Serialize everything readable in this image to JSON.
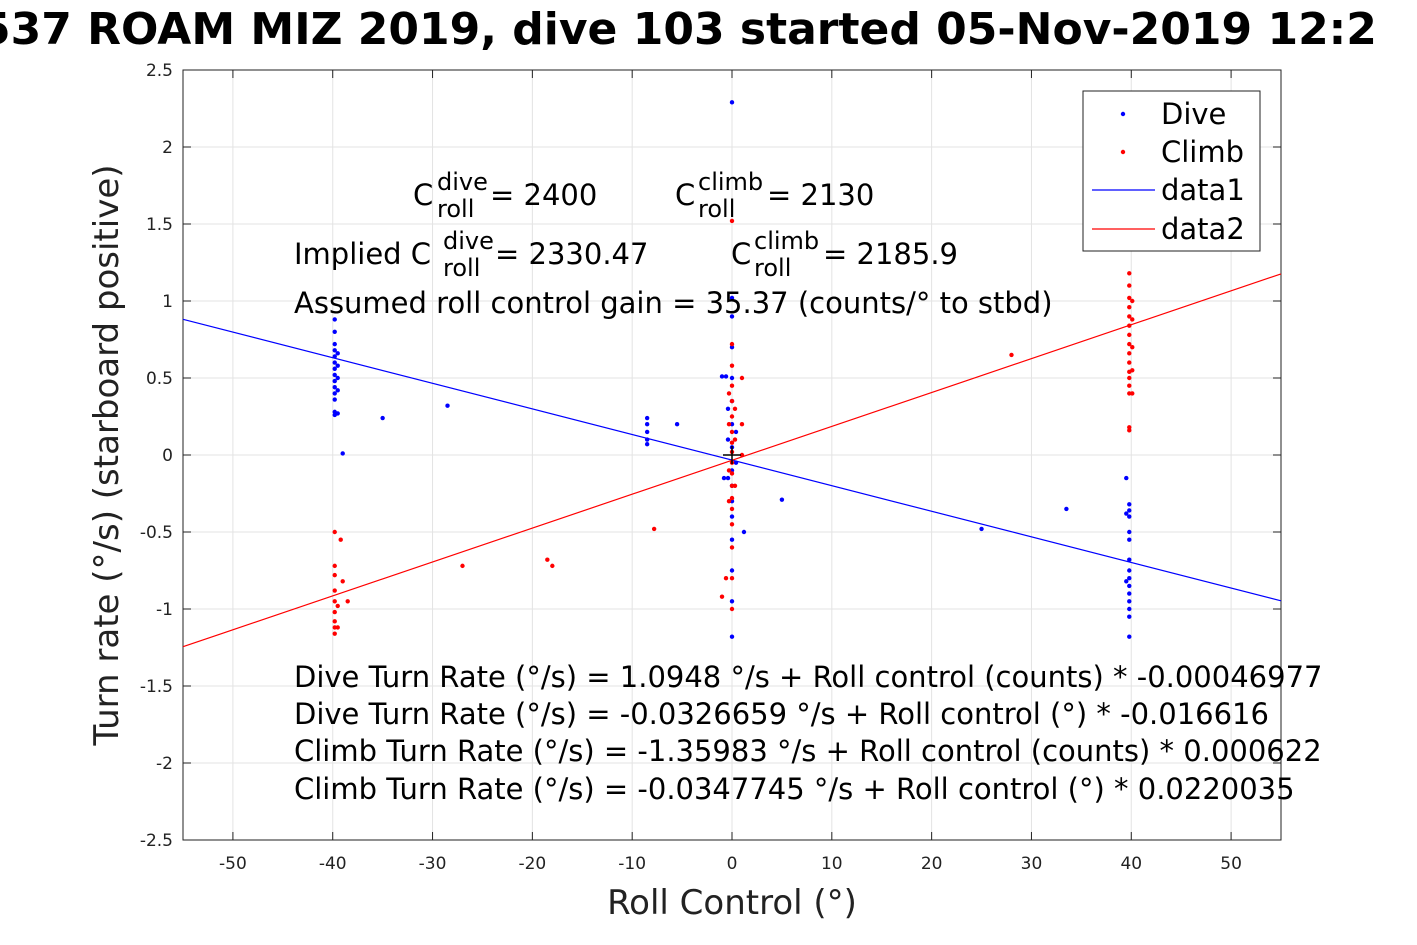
{
  "title": "537 ROAM MIZ 2019, dive 103 started 05-Nov-2019 12:2",
  "chart_data": {
    "type": "scatter",
    "xlabel": "Roll Control (°)",
    "ylabel": "Turn rate (°/s) (starboard positive)",
    "xlim": [
      -55,
      55
    ],
    "ylim": [
      -2.5,
      2.5
    ],
    "grid": true,
    "legend_position": "top-right",
    "x_ticks": [
      "-50",
      "-40",
      "-30",
      "-20",
      "-10",
      "0",
      "10",
      "20",
      "30",
      "40",
      "50"
    ],
    "y_ticks": [
      "-2.5",
      "-2",
      "-1.5",
      "-1",
      "-0.5",
      "0",
      "0.5",
      "1",
      "1.5",
      "2",
      "2.5"
    ],
    "legend": [
      {
        "label": "Dive",
        "kind": "marker",
        "color": "#0000ff"
      },
      {
        "label": "Climb",
        "kind": "marker",
        "color": "#ff0000"
      },
      {
        "label": "data1",
        "kind": "line",
        "color": "#0000ff"
      },
      {
        "label": "data2",
        "kind": "line",
        "color": "#ff0000"
      }
    ],
    "annotations": {
      "c_dive_base": "C",
      "c_dive_sup": "dive",
      "c_dive_sub": "roll",
      "c_dive_value": " = 2400",
      "c_climb_base": "C",
      "c_climb_sup": "climb",
      "c_climb_sub": "roll",
      "c_climb_value": " = 2130",
      "implied_prefix": "Implied C",
      "implied_dive_sup": "dive",
      "implied_dive_sub": "roll",
      "implied_dive_value": " = 2330.47",
      "implied_climb_base": "C",
      "implied_climb_sup": "climb",
      "implied_climb_sub": "roll",
      "implied_climb_value": " = 2185.9",
      "gain": "Assumed roll control gain = 35.37 (counts/° to stbd)",
      "eq1": "Dive Turn Rate (°/s) = 1.0948 °/s + Roll control (counts) * -0.00046977",
      "eq2": "Dive Turn Rate (°/s) = -0.0326659 °/s + Roll control (°) * -0.016616",
      "eq3": "Climb Turn Rate (°/s) = -1.35983 °/s + Roll control (counts) * 0.000622",
      "eq4": "Climb Turn Rate (°/s) = -0.0347745 °/s + Roll control (°) * 0.0220035"
    },
    "series": [
      {
        "name": "Dive",
        "type": "scatter",
        "color": "#0000ff",
        "points": [
          [
            0,
            2.29
          ],
          [
            0,
            1.02
          ],
          [
            0,
            0.9
          ],
          [
            0,
            0.7
          ],
          [
            0,
            0.5
          ],
          [
            0,
            0.35
          ],
          [
            0,
            0.2
          ],
          [
            0,
            0.05
          ],
          [
            0,
            -0.1
          ],
          [
            0,
            -0.2
          ],
          [
            0,
            -0.3
          ],
          [
            0,
            -0.4
          ],
          [
            0,
            -0.55
          ],
          [
            0,
            -0.75
          ],
          [
            0,
            -0.95
          ],
          [
            0,
            -1.18
          ],
          [
            -0.4,
            0.3
          ],
          [
            -0.4,
            0.1
          ],
          [
            -0.4,
            -0.15
          ],
          [
            0.4,
            0.15
          ],
          [
            0.4,
            -0.05
          ],
          [
            -1.0,
            0.51
          ],
          [
            -0.6,
            0.51
          ],
          [
            -0.8,
            -0.15
          ],
          [
            1.2,
            -0.5
          ],
          [
            -39.8,
            0.88
          ],
          [
            -39.8,
            0.8
          ],
          [
            -39.8,
            0.72
          ],
          [
            -39.8,
            0.68
          ],
          [
            -39.8,
            0.64
          ],
          [
            -39.8,
            0.6
          ],
          [
            -39.8,
            0.56
          ],
          [
            -39.8,
            0.52
          ],
          [
            -39.8,
            0.48
          ],
          [
            -39.8,
            0.44
          ],
          [
            -39.8,
            0.4
          ],
          [
            -39.8,
            0.36
          ],
          [
            -39.8,
            0.28
          ],
          [
            -39.8,
            0.26
          ],
          [
            -39.5,
            0.66
          ],
          [
            -39.5,
            0.58
          ],
          [
            -39.5,
            0.5
          ],
          [
            -39.5,
            0.42
          ],
          [
            -39.5,
            0.27
          ],
          [
            -39.0,
            0.01
          ],
          [
            -35,
            0.24
          ],
          [
            -28.5,
            0.32
          ],
          [
            -8.5,
            0.24
          ],
          [
            -8.5,
            0.2
          ],
          [
            -8.5,
            0.15
          ],
          [
            -8.5,
            0.1
          ],
          [
            -8.5,
            0.07
          ],
          [
            -5.5,
            0.2
          ],
          [
            5,
            -0.29
          ],
          [
            25,
            -0.48
          ],
          [
            33.5,
            -0.35
          ],
          [
            39.5,
            -0.15
          ],
          [
            39.8,
            -0.32
          ],
          [
            39.8,
            -0.36
          ],
          [
            39.8,
            -0.4
          ],
          [
            39.8,
            -0.5
          ],
          [
            39.8,
            -0.55
          ],
          [
            39.8,
            -0.68
          ],
          [
            39.8,
            -0.75
          ],
          [
            39.8,
            -0.8
          ],
          [
            39.8,
            -0.85
          ],
          [
            39.8,
            -0.9
          ],
          [
            39.8,
            -0.95
          ],
          [
            39.8,
            -1.0
          ],
          [
            39.8,
            -1.05
          ],
          [
            39.8,
            -1.18
          ],
          [
            39.5,
            -0.38
          ],
          [
            39.5,
            -0.82
          ]
        ]
      },
      {
        "name": "Climb",
        "type": "scatter",
        "color": "#ff0000",
        "points": [
          [
            0,
            1.52
          ],
          [
            0,
            0.72
          ],
          [
            0,
            0.58
          ],
          [
            0,
            0.45
          ],
          [
            0,
            0.35
          ],
          [
            0,
            0.25
          ],
          [
            0,
            0.15
          ],
          [
            0,
            0.08
          ],
          [
            0,
            0.02
          ],
          [
            0,
            -0.05
          ],
          [
            0,
            -0.12
          ],
          [
            0,
            -0.2
          ],
          [
            0,
            -0.28
          ],
          [
            0,
            -0.35
          ],
          [
            0,
            -0.45
          ],
          [
            0,
            -0.6
          ],
          [
            0,
            -0.8
          ],
          [
            0,
            -1.0
          ],
          [
            -0.3,
            0.4
          ],
          [
            -0.3,
            0.2
          ],
          [
            -0.3,
            -0.1
          ],
          [
            -0.3,
            -0.3
          ],
          [
            0.3,
            0.3
          ],
          [
            0.3,
            0.1
          ],
          [
            0.3,
            -0.2
          ],
          [
            1.0,
            0.5
          ],
          [
            1.0,
            0.2
          ],
          [
            1.0,
            0.0
          ],
          [
            -1.0,
            -0.92
          ],
          [
            -0.6,
            -0.8
          ],
          [
            -39.8,
            -0.5
          ],
          [
            -39.8,
            -0.72
          ],
          [
            -39.8,
            -0.78
          ],
          [
            -39.8,
            -0.88
          ],
          [
            -39.8,
            -0.95
          ],
          [
            -39.8,
            -1.02
          ],
          [
            -39.8,
            -1.08
          ],
          [
            -39.8,
            -1.12
          ],
          [
            -39.8,
            -1.16
          ],
          [
            -39.5,
            -0.98
          ],
          [
            -39.5,
            -1.12
          ],
          [
            -39.2,
            -0.55
          ],
          [
            -39.0,
            -0.82
          ],
          [
            -38.5,
            -0.95
          ],
          [
            -27,
            -0.72
          ],
          [
            -18.5,
            -0.68
          ],
          [
            -18,
            -0.72
          ],
          [
            -7.8,
            -0.48
          ],
          [
            28,
            0.65
          ],
          [
            39.8,
            1.18
          ],
          [
            39.8,
            1.1
          ],
          [
            39.8,
            1.02
          ],
          [
            39.8,
            0.96
          ],
          [
            39.8,
            0.9
          ],
          [
            39.8,
            0.84
          ],
          [
            39.8,
            0.78
          ],
          [
            39.8,
            0.72
          ],
          [
            39.8,
            0.66
          ],
          [
            39.8,
            0.6
          ],
          [
            39.8,
            0.54
          ],
          [
            39.8,
            0.5
          ],
          [
            39.8,
            0.45
          ],
          [
            39.8,
            0.4
          ],
          [
            39.8,
            0.18
          ],
          [
            39.8,
            0.16
          ],
          [
            40.1,
            1.0
          ],
          [
            40.1,
            0.88
          ],
          [
            40.1,
            0.7
          ],
          [
            40.1,
            0.55
          ],
          [
            40.1,
            0.4
          ]
        ]
      },
      {
        "name": "data1",
        "type": "line",
        "color": "#0000ff",
        "points": [
          [
            -55,
            0.881
          ],
          [
            55,
            -0.947
          ]
        ]
      },
      {
        "name": "data2",
        "type": "line",
        "color": "#ff0000",
        "points": [
          [
            -55,
            -1.245
          ],
          [
            55,
            1.176
          ]
        ]
      }
    ],
    "center_marker": [
      0,
      0
    ]
  }
}
